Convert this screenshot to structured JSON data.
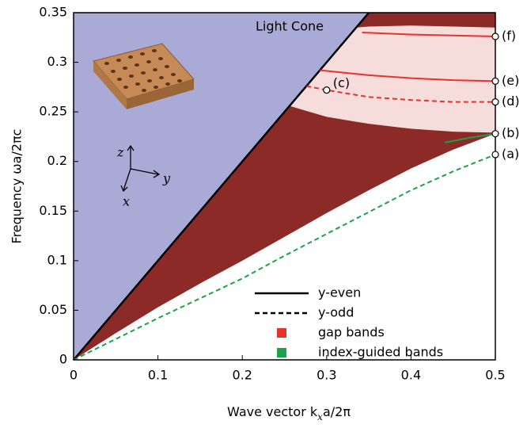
{
  "chart_data": {
    "type": "line",
    "xlabel": [
      "Wave vector  k",
      "x",
      "a/2π"
    ],
    "ylabel": "Frequency  ωa/2πc",
    "xlim": [
      0,
      0.5
    ],
    "ylim": [
      0,
      0.35
    ],
    "xticks": [
      0,
      0.1,
      0.2,
      0.3,
      0.4,
      0.5
    ],
    "yticks": [
      0,
      0.05,
      0.1,
      0.15,
      0.2,
      0.25,
      0.3,
      0.35
    ],
    "regions": [
      {
        "color": "#aaaad6",
        "x": [
          0,
          0.35
        ],
        "lower": [
          0,
          0.35
        ],
        "upper": [
          0.35,
          0.35
        ]
      },
      {
        "color": "#8b2a26",
        "x": [
          0,
          0.05,
          0.1,
          0.15,
          0.2,
          0.25,
          0.3,
          0.35,
          0.4,
          0.45,
          0.5
        ],
        "lower": [
          0,
          0.027,
          0.053,
          0.077,
          0.1,
          0.124,
          0.148,
          0.171,
          0.193,
          0.212,
          0.228
        ],
        "upper": [
          0,
          0.05,
          0.1,
          0.15,
          0.2,
          0.25,
          0.3,
          0.35,
          0.35,
          0.35,
          0.35
        ]
      },
      {
        "color": "#f7dcdc",
        "x": [
          0.256,
          0.3,
          0.335,
          0.35,
          0.4,
          0.45,
          0.5
        ],
        "lower": [
          0.256,
          0.245,
          0.24,
          0.238,
          0.233,
          0.23,
          0.229
        ],
        "upper": [
          0.256,
          0.3,
          0.335,
          0.336,
          0.337,
          0.336,
          0.335
        ]
      }
    ],
    "series": [
      {
        "color": "#000000",
        "dash": false,
        "x": [
          0,
          0.35
        ],
        "values": [
          0,
          0.35
        ]
      },
      {
        "color": "#e8322c",
        "dash": false,
        "x": [
          0.342,
          0.4,
          0.45,
          0.5
        ],
        "values": [
          0.33,
          0.328,
          0.327,
          0.326
        ]
      },
      {
        "color": "#e8322c",
        "dash": false,
        "x": [
          0.292,
          0.35,
          0.4,
          0.45,
          0.5
        ],
        "values": [
          0.292,
          0.287,
          0.284,
          0.282,
          0.281
        ]
      },
      {
        "color": "#e8322c",
        "dash": true,
        "x": [
          0.276,
          0.3,
          0.35,
          0.4,
          0.45,
          0.5
        ],
        "values": [
          0.276,
          0.272,
          0.265,
          0.262,
          0.26,
          0.26
        ]
      },
      {
        "color": "#1ba24a",
        "dash": true,
        "x": [
          0,
          0.05,
          0.1,
          0.15,
          0.2,
          0.25,
          0.3,
          0.35,
          0.4,
          0.45,
          0.5
        ],
        "values": [
          0,
          0.021,
          0.042,
          0.062,
          0.082,
          0.105,
          0.127,
          0.149,
          0.171,
          0.19,
          0.207
        ]
      },
      {
        "color": "#1ba24a",
        "dash": false,
        "x": [
          0.44,
          0.47,
          0.5
        ],
        "values": [
          0.219,
          0.224,
          0.228
        ]
      }
    ],
    "markers": [
      {
        "x": 0.5,
        "y": 0.326,
        "label": "(f)"
      },
      {
        "x": 0.5,
        "y": 0.281,
        "label": "(e)"
      },
      {
        "x": 0.5,
        "y": 0.26,
        "label": "(d)"
      },
      {
        "x": 0.5,
        "y": 0.228,
        "label": "(b)"
      },
      {
        "x": 0.5,
        "y": 0.207,
        "label": "(a)"
      },
      {
        "x": 0.3,
        "y": 0.272,
        "label": "(c)"
      }
    ],
    "annotation": "Light Cone",
    "inset_axes": [
      "z",
      "y",
      "x"
    ],
    "legend": [
      {
        "label": "y-even",
        "kind": "solid",
        "color": "#000000"
      },
      {
        "label": "y-odd",
        "kind": "dashed",
        "color": "#000000"
      },
      {
        "label": "gap bands",
        "kind": "square",
        "color": "#e8322c"
      },
      {
        "label": "index-guided bands",
        "kind": "square",
        "color": "#1ba24a"
      }
    ]
  }
}
